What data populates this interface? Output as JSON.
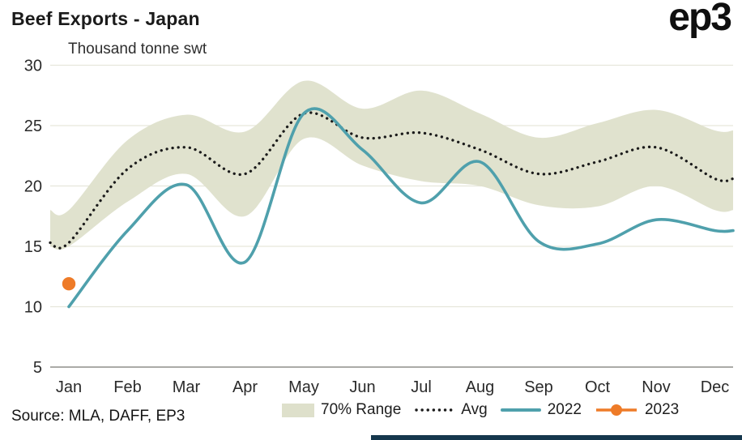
{
  "header": {
    "logo": "ep3"
  },
  "chart_data": {
    "type": "line",
    "title": "Beef Exports - Japan",
    "units_label": "Thousand tonne swt",
    "categories": [
      "Jan",
      "Feb",
      "Mar",
      "Apr",
      "May",
      "Jun",
      "Jul",
      "Aug",
      "Sep",
      "Oct",
      "Nov",
      "Dec"
    ],
    "ylim": [
      5,
      30
    ],
    "yticks": [
      5,
      10,
      15,
      20,
      25,
      30
    ],
    "grid": true,
    "legend_position": "bottom",
    "series": [
      {
        "name": "70% Range",
        "type": "band",
        "color": "#dee0cb",
        "upper": [
          18.0,
          23.8,
          25.9,
          24.5,
          28.7,
          26.4,
          27.9,
          26.0,
          24.0,
          25.2,
          26.3,
          24.6
        ],
        "lower": [
          15.0,
          18.7,
          21.0,
          17.5,
          23.9,
          21.7,
          20.4,
          20.0,
          18.4,
          18.3,
          20.0,
          18.0
        ]
      },
      {
        "name": "Avg",
        "type": "dotted_line",
        "color": "#1b1b1b",
        "values": [
          15.3,
          21.4,
          23.2,
          21.0,
          26.0,
          24.0,
          24.4,
          23.0,
          21.0,
          22.0,
          23.2,
          20.6
        ]
      },
      {
        "name": "2022",
        "type": "line",
        "color": "#4fa0ac",
        "values": [
          10.0,
          16.3,
          20.1,
          13.7,
          26.0,
          23.0,
          18.6,
          22.0,
          15.4,
          15.2,
          17.2,
          16.3
        ]
      },
      {
        "name": "2023",
        "type": "point",
        "color": "#ee7b28",
        "values": [
          11.9,
          null,
          null,
          null,
          null,
          null,
          null,
          null,
          null,
          null,
          null,
          null
        ]
      }
    ]
  },
  "footer": {
    "source": "Source: MLA, DAFF, EP3"
  },
  "colors": {
    "grid": "#e6e6db",
    "axis": "#8f8f8a",
    "text": "#2a2a2a",
    "accent_bar": "#15374d",
    "background": "#ffffff"
  }
}
